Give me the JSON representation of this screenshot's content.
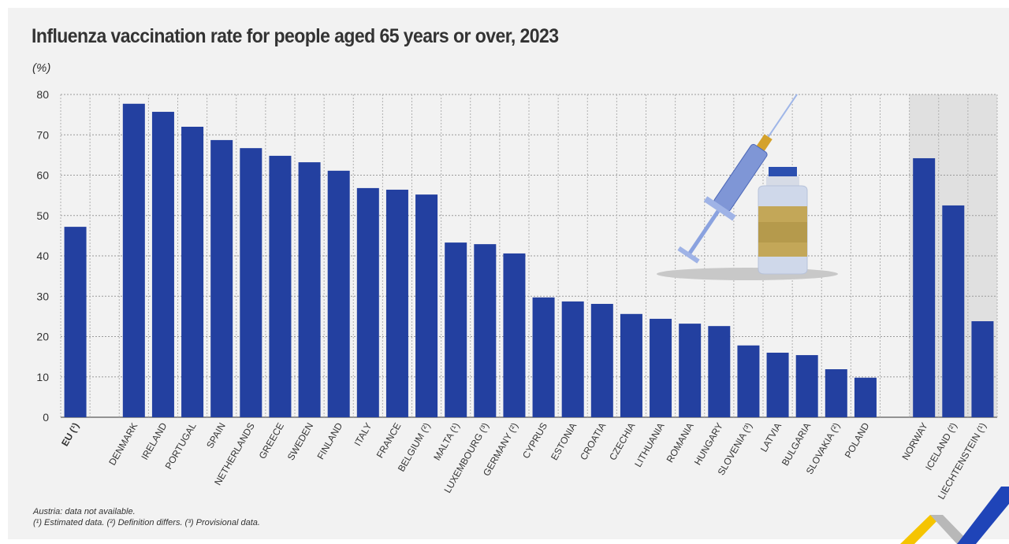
{
  "chart_data": {
    "type": "bar",
    "title": "Influenza vaccination rate for people aged 65 years or over, 2023",
    "ylabel": "(%)",
    "ylim": [
      0,
      80
    ],
    "yticks": [
      "0",
      "10",
      "20",
      "30",
      "40",
      "50",
      "60",
      "70",
      "80"
    ],
    "grid": true,
    "bar_color": "#2340a0",
    "efta_shade_color": "#e0e0e0",
    "groups": [
      {
        "categories": [
          "EU (¹)"
        ],
        "values": [
          47.2
        ]
      },
      {
        "categories": [
          "DENMARK",
          "IRELAND",
          "PORTUGAL",
          "SPAIN",
          "NETHERLANDS",
          "GREECE",
          "SWEDEN",
          "FINLAND",
          "ITALY",
          "FRANCE",
          "BELGIUM (²)",
          "MALTA (¹)",
          "LUXEMBOURG (³)",
          "GERMANY (²)",
          "CYPRUS",
          "ESTONIA",
          "CROATIA",
          "CZECHIA",
          "LITHUANIA",
          "ROMANIA",
          "HUNGARY",
          "SLOVENIA (³)",
          "LATVIA",
          "BULGARIA",
          "SLOVAKIA (²)",
          "POLAND"
        ],
        "values": [
          77.7,
          75.7,
          72.0,
          68.7,
          66.7,
          64.8,
          63.2,
          61.1,
          56.8,
          56.4,
          55.2,
          43.3,
          42.9,
          40.6,
          29.7,
          28.7,
          28.1,
          25.6,
          24.4,
          23.2,
          22.6,
          17.8,
          16.0,
          15.4,
          11.9,
          9.8
        ]
      },
      {
        "categories": [
          "NORWAY",
          "ICELAND (²)",
          "LIECHTENSTEIN (¹)"
        ],
        "values": [
          64.2,
          52.5,
          23.8
        ]
      }
    ]
  },
  "notes": [
    "Austria: data not available.",
    "(¹) Estimated data. (²) Definition differs. (³) Provisional data."
  ],
  "icons": [
    "syringe-icon",
    "vial-icon",
    "eurostat-logo"
  ]
}
